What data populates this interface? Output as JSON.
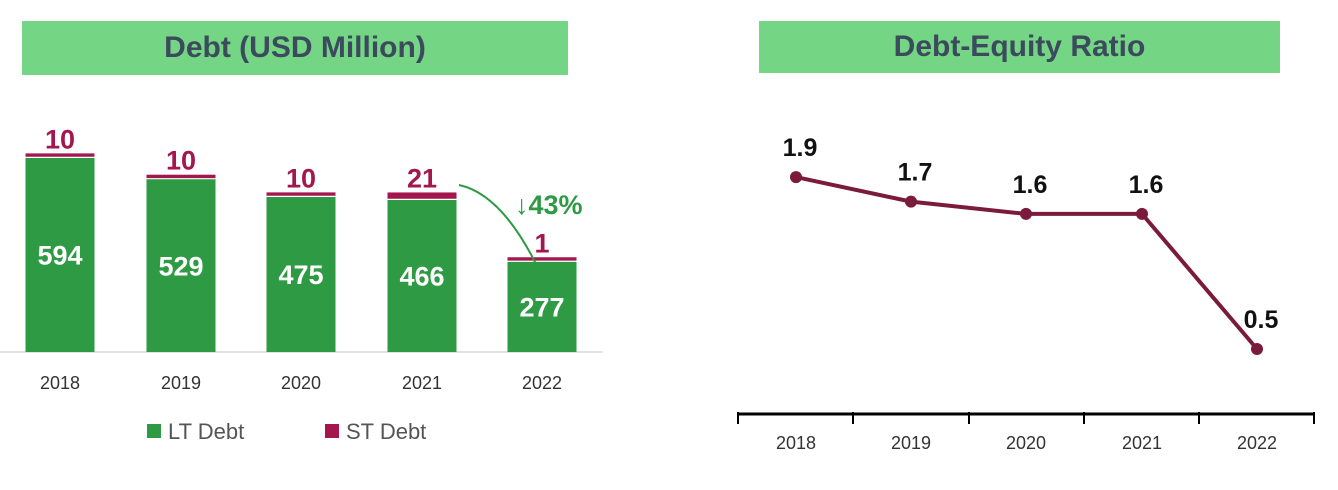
{
  "colors": {
    "lt_debt": "#2e9a44",
    "st_debt": "#a3174e",
    "ratio_line": "#7b1b3c",
    "banner_bg": "#74d584",
    "banner_text": "#3b4a5c",
    "change_arrow": "#2e9a44"
  },
  "debt_panel": {
    "title": "Debt (USD Million)",
    "change_label": "↓43%"
  },
  "ratio_panel": {
    "title": "Debt-Equity Ratio"
  },
  "chart_data": [
    {
      "type": "bar",
      "stacked": true,
      "title": "Debt (USD Million)",
      "categories": [
        "2018",
        "2019",
        "2020",
        "2021",
        "2022"
      ],
      "series": [
        {
          "name": "LT Debt",
          "values": [
            594,
            529,
            475,
            466,
            277
          ]
        },
        {
          "name": "ST Debt",
          "values": [
            10,
            10,
            10,
            21,
            1
          ]
        }
      ],
      "annotation": "↓43%",
      "legend_position": "bottom",
      "grid": false
    },
    {
      "type": "line",
      "title": "Debt-Equity Ratio",
      "categories": [
        "2018",
        "2019",
        "2020",
        "2021",
        "2022"
      ],
      "values": [
        1.9,
        1.7,
        1.6,
        1.6,
        0.5
      ],
      "grid": false
    }
  ]
}
